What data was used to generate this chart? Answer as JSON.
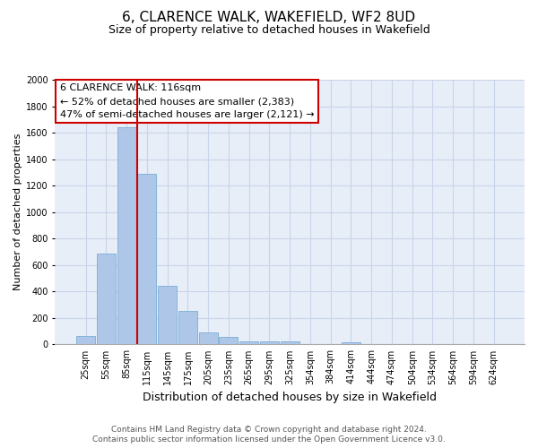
{
  "title": "6, CLARENCE WALK, WAKEFIELD, WF2 8UD",
  "subtitle": "Size of property relative to detached houses in Wakefield",
  "xlabel": "Distribution of detached houses by size in Wakefield",
  "ylabel": "Number of detached properties",
  "categories": [
    "25sqm",
    "55sqm",
    "85sqm",
    "115sqm",
    "145sqm",
    "175sqm",
    "205sqm",
    "235sqm",
    "265sqm",
    "295sqm",
    "325sqm",
    "354sqm",
    "384sqm",
    "414sqm",
    "444sqm",
    "474sqm",
    "504sqm",
    "534sqm",
    "564sqm",
    "594sqm",
    "624sqm"
  ],
  "values": [
    65,
    690,
    1640,
    1290,
    440,
    255,
    90,
    55,
    25,
    25,
    20,
    0,
    0,
    15,
    0,
    0,
    0,
    0,
    0,
    0,
    0
  ],
  "bar_color": "#aec6e8",
  "bar_edge_color": "#7aadd4",
  "vline_x": 2.5,
  "vline_color": "#cc0000",
  "ylim": [
    0,
    2000
  ],
  "yticks": [
    0,
    200,
    400,
    600,
    800,
    1000,
    1200,
    1400,
    1600,
    1800,
    2000
  ],
  "annotation_box_text": "6 CLARENCE WALK: 116sqm\n← 52% of detached houses are smaller (2,383)\n47% of semi-detached houses are larger (2,121) →",
  "annotation_box_color": "#cc0000",
  "annotation_box_bg": "#ffffff",
  "grid_color": "#c8d4e8",
  "bg_color": "#e8eef8",
  "footer_line1": "Contains HM Land Registry data © Crown copyright and database right 2024.",
  "footer_line2": "Contains public sector information licensed under the Open Government Licence v3.0.",
  "title_fontsize": 11,
  "subtitle_fontsize": 9,
  "xlabel_fontsize": 9,
  "ylabel_fontsize": 8,
  "tick_fontsize": 7,
  "annotation_fontsize": 8,
  "footer_fontsize": 6.5
}
